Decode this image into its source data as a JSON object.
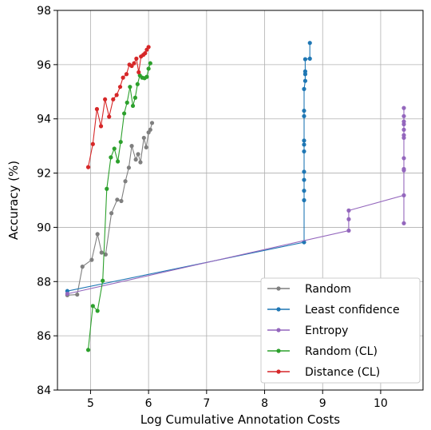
{
  "chart_data": {
    "type": "line",
    "title": "",
    "xlabel": "Log Cumulative Annotation Costs",
    "ylabel": "Accuracy (%)",
    "xlim": [
      4.43,
      10.73
    ],
    "ylim": [
      84,
      98
    ],
    "xticks": [
      5,
      6,
      7,
      8,
      9,
      10
    ],
    "yticks": [
      84,
      86,
      88,
      90,
      92,
      94,
      96,
      98
    ],
    "grid": true,
    "legend_position": "bottom-right",
    "series": [
      {
        "name": "Random",
        "color": "#7f7f7f",
        "points": [
          [
            4.6,
            87.5
          ],
          [
            4.77,
            87.52
          ],
          [
            4.86,
            88.55
          ],
          [
            5.02,
            88.8
          ],
          [
            5.12,
            89.75
          ],
          [
            5.19,
            89.07
          ],
          [
            5.26,
            89.0
          ],
          [
            5.36,
            90.52
          ],
          [
            5.46,
            91.02
          ],
          [
            5.53,
            90.97
          ],
          [
            5.6,
            91.7
          ],
          [
            5.66,
            92.2
          ],
          [
            5.71,
            93.0
          ],
          [
            5.78,
            92.5
          ],
          [
            5.82,
            92.7
          ],
          [
            5.86,
            92.4
          ],
          [
            5.92,
            93.3
          ],
          [
            5.96,
            92.95
          ],
          [
            6.0,
            93.5
          ],
          [
            6.03,
            93.6
          ],
          [
            6.06,
            93.85
          ]
        ]
      },
      {
        "name": "Least confidence",
        "color": "#1f77b4",
        "points": [
          [
            4.6,
            87.65
          ],
          [
            8.68,
            89.45
          ],
          [
            8.68,
            91.0
          ],
          [
            8.68,
            91.35
          ],
          [
            8.68,
            91.75
          ],
          [
            8.68,
            92.05
          ],
          [
            8.68,
            92.8
          ],
          [
            8.68,
            93.05
          ],
          [
            8.68,
            93.2
          ],
          [
            8.68,
            94.1
          ],
          [
            8.68,
            94.3
          ],
          [
            8.68,
            95.1
          ],
          [
            8.7,
            95.4
          ],
          [
            8.7,
            95.65
          ],
          [
            8.7,
            95.75
          ],
          [
            8.7,
            96.2
          ],
          [
            8.78,
            96.22
          ],
          [
            8.78,
            96.8
          ]
        ]
      },
      {
        "name": "Entropy",
        "color": "#9467bd",
        "points": [
          [
            4.6,
            87.55
          ],
          [
            9.45,
            89.88
          ],
          [
            9.45,
            90.3
          ],
          [
            9.45,
            90.62
          ],
          [
            10.4,
            91.18
          ],
          [
            10.4,
            90.15
          ],
          [
            10.4,
            92.1
          ],
          [
            10.4,
            92.15
          ],
          [
            10.4,
            92.55
          ],
          [
            10.4,
            93.3
          ],
          [
            10.4,
            93.4
          ],
          [
            10.4,
            93.6
          ],
          [
            10.4,
            93.8
          ],
          [
            10.4,
            93.9
          ],
          [
            10.4,
            94.1
          ],
          [
            10.4,
            94.4
          ]
        ]
      },
      {
        "name": "Random (CL)",
        "color": "#2ca02c",
        "points": [
          [
            4.96,
            85.48
          ],
          [
            5.04,
            87.1
          ],
          [
            5.12,
            86.92
          ],
          [
            5.21,
            88.03
          ],
          [
            5.28,
            91.42
          ],
          [
            5.35,
            92.58
          ],
          [
            5.41,
            92.9
          ],
          [
            5.47,
            92.43
          ],
          [
            5.52,
            93.15
          ],
          [
            5.58,
            94.2
          ],
          [
            5.63,
            94.6
          ],
          [
            5.68,
            95.18
          ],
          [
            5.73,
            94.48
          ],
          [
            5.77,
            94.78
          ],
          [
            5.81,
            95.28
          ],
          [
            5.85,
            95.6
          ],
          [
            5.89,
            95.52
          ],
          [
            5.93,
            95.5
          ],
          [
            5.97,
            95.55
          ],
          [
            6.0,
            95.85
          ],
          [
            6.03,
            96.05
          ]
        ]
      },
      {
        "name": "Distance (CL)",
        "color": "#d62728",
        "points": [
          [
            4.96,
            92.22
          ],
          [
            5.04,
            93.07
          ],
          [
            5.11,
            94.36
          ],
          [
            5.18,
            93.73
          ],
          [
            5.25,
            94.72
          ],
          [
            5.32,
            94.08
          ],
          [
            5.39,
            94.72
          ],
          [
            5.45,
            94.88
          ],
          [
            5.51,
            95.18
          ],
          [
            5.56,
            95.52
          ],
          [
            5.62,
            95.65
          ],
          [
            5.67,
            96.0
          ],
          [
            5.71,
            95.95
          ],
          [
            5.75,
            96.05
          ],
          [
            5.79,
            96.22
          ],
          [
            5.83,
            95.72
          ],
          [
            5.87,
            96.3
          ],
          [
            5.91,
            96.36
          ],
          [
            5.94,
            96.42
          ],
          [
            5.97,
            96.55
          ],
          [
            6.0,
            96.65
          ]
        ]
      }
    ]
  }
}
